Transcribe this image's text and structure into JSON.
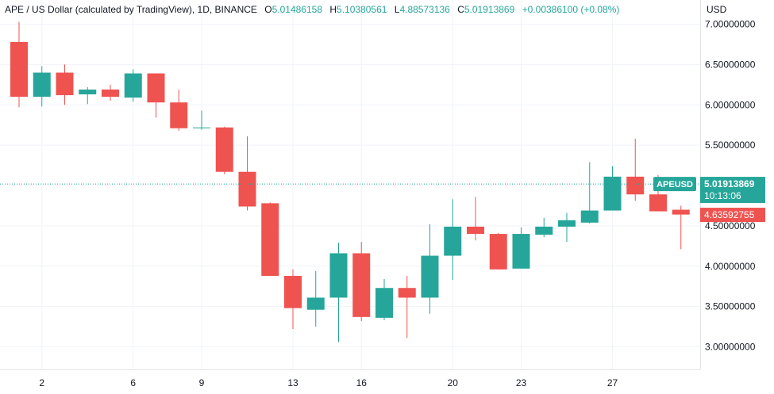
{
  "header": {
    "symbol_line": "APE / US Dollar (calculated by TradingView), 1D, BINANCE",
    "open_label": "O",
    "open": "5.01486158",
    "high_label": "H",
    "high": "5.10380561",
    "low_label": "L",
    "low": "4.88573136",
    "close_label": "C",
    "close": "5.01913869",
    "change": "+0.00386100 (+0.08%)"
  },
  "price_axis": {
    "currency": "USD"
  },
  "colors": {
    "up": "#26a69a",
    "down": "#ef5350",
    "grid": "#f0f3fa",
    "text": "#131722"
  },
  "chart_data": {
    "type": "candlestick",
    "ylim": [
      2.72,
      7.3
    ],
    "y_ticks": [
      "3.00000000",
      "3.50000000",
      "4.00000000",
      "4.50000000",
      "5.00000000",
      "5.50000000",
      "6.00000000",
      "6.50000000",
      "7.00000000"
    ],
    "x_ticks": [
      {
        "label": "2",
        "index": 1
      },
      {
        "label": "6",
        "index": 5
      },
      {
        "label": "9",
        "index": 8
      },
      {
        "label": "13",
        "index": 12
      },
      {
        "label": "16",
        "index": 15
      },
      {
        "label": "20",
        "index": 19
      },
      {
        "label": "23",
        "index": 22
      },
      {
        "label": "27",
        "index": 26
      }
    ],
    "candles": [
      {
        "o": 6.78,
        "h": 7.03,
        "l": 5.97,
        "c": 6.1
      },
      {
        "o": 6.1,
        "h": 6.48,
        "l": 5.98,
        "c": 6.4
      },
      {
        "o": 6.4,
        "h": 6.5,
        "l": 6.0,
        "c": 6.12
      },
      {
        "o": 6.13,
        "h": 6.22,
        "l": 6.01,
        "c": 6.19
      },
      {
        "o": 6.19,
        "h": 6.25,
        "l": 6.05,
        "c": 6.1
      },
      {
        "o": 6.09,
        "h": 6.44,
        "l": 6.04,
        "c": 6.39
      },
      {
        "o": 6.39,
        "h": 6.39,
        "l": 5.84,
        "c": 6.03
      },
      {
        "o": 6.03,
        "h": 6.19,
        "l": 5.68,
        "c": 5.71
      },
      {
        "o": 5.71,
        "h": 5.93,
        "l": 5.69,
        "c": 5.72
      },
      {
        "o": 5.72,
        "h": 5.73,
        "l": 5.14,
        "c": 5.17
      },
      {
        "o": 5.17,
        "h": 5.61,
        "l": 4.69,
        "c": 4.74
      },
      {
        "o": 4.78,
        "h": 4.79,
        "l": 3.88,
        "c": 3.88
      },
      {
        "o": 3.88,
        "h": 3.96,
        "l": 3.22,
        "c": 3.48
      },
      {
        "o": 3.46,
        "h": 3.94,
        "l": 3.25,
        "c": 3.61
      },
      {
        "o": 3.61,
        "h": 4.29,
        "l": 3.06,
        "c": 4.16
      },
      {
        "o": 4.16,
        "h": 4.3,
        "l": 3.32,
        "c": 3.37
      },
      {
        "o": 3.36,
        "h": 3.84,
        "l": 3.33,
        "c": 3.73
      },
      {
        "o": 3.73,
        "h": 3.88,
        "l": 3.11,
        "c": 3.61
      },
      {
        "o": 3.61,
        "h": 4.52,
        "l": 3.41,
        "c": 4.13
      },
      {
        "o": 4.13,
        "h": 4.83,
        "l": 3.83,
        "c": 4.49
      },
      {
        "o": 4.49,
        "h": 4.86,
        "l": 4.32,
        "c": 4.4
      },
      {
        "o": 4.4,
        "h": 4.41,
        "l": 3.96,
        "c": 3.96
      },
      {
        "o": 3.97,
        "h": 4.48,
        "l": 3.97,
        "c": 4.4
      },
      {
        "o": 4.39,
        "h": 4.6,
        "l": 4.36,
        "c": 4.49
      },
      {
        "o": 4.49,
        "h": 4.66,
        "l": 4.3,
        "c": 4.57
      },
      {
        "o": 4.54,
        "h": 5.29,
        "l": 4.53,
        "c": 4.69
      },
      {
        "o": 4.69,
        "h": 5.24,
        "l": 4.69,
        "c": 5.11
      },
      {
        "o": 5.11,
        "h": 5.58,
        "l": 4.81,
        "c": 4.89
      },
      {
        "o": 4.89,
        "h": 5.13,
        "l": 4.68,
        "c": 4.68
      },
      {
        "o": 4.7,
        "h": 4.75,
        "l": 4.21,
        "c": 4.64
      }
    ],
    "last_price": {
      "symbol": "APEUSD",
      "value": "5.01913869",
      "countdown": "10:13:06",
      "price": 5.01913869
    },
    "other_price": {
      "value": "4.63592755",
      "price": 4.63592755
    }
  }
}
